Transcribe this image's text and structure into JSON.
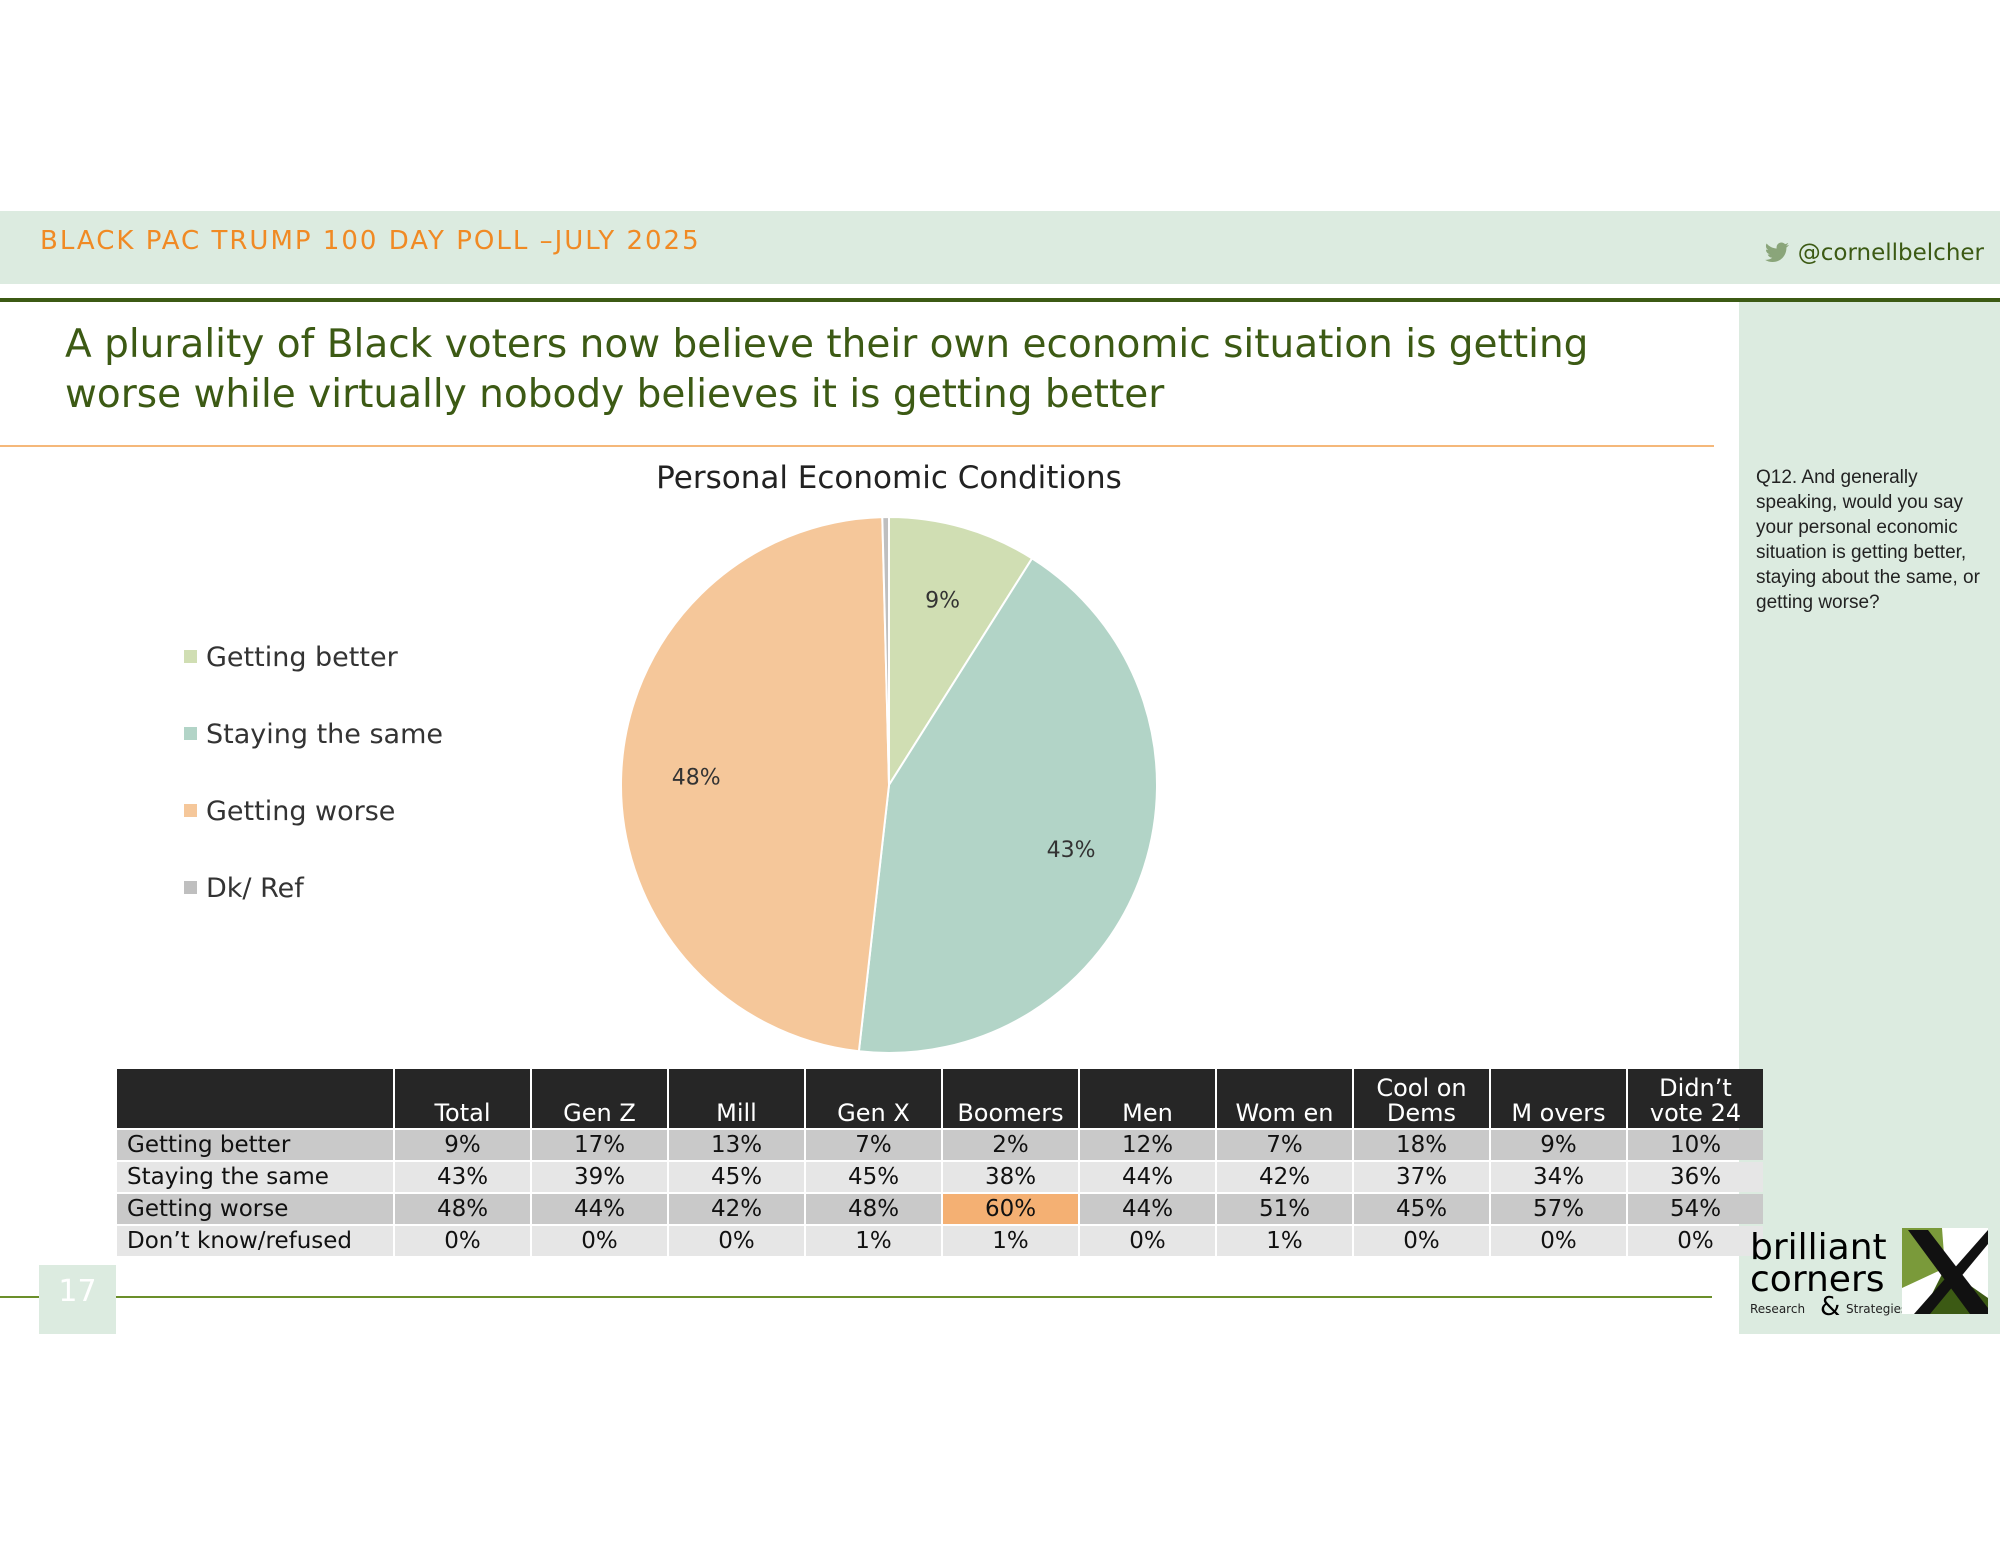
{
  "header": {
    "title": "BLACK PAC TRUMP 100 DAY POLL –JULY 2025",
    "twitter": "@cornellbelcher"
  },
  "headline": "A plurality of Black voters now believe their own economic situation is getting worse while virtually nobody believes it is getting better",
  "question": "Q12. And generally speaking, would you say your personal economic situation is getting better, staying about the same, or getting worse?",
  "page_number": "17",
  "logo": {
    "line1": "brilliant",
    "line2": "corners",
    "amp": "&",
    "line3": "Research",
    "line4": "Strategies"
  },
  "colors": {
    "accent_orange": "#f08a24",
    "brand_green": "#3c5a14",
    "panel_green": "#dcebe0",
    "highlight": "#f4b073"
  },
  "chart_data": [
    {
      "type": "pie",
      "title": "Personal Economic Conditions",
      "labels": [
        "Getting better",
        "Staying the same",
        "Getting worse",
        "Dk/ Ref"
      ],
      "values": [
        9,
        43,
        48,
        0.4
      ],
      "data_labels": [
        "9%",
        "43%",
        "48%",
        ""
      ],
      "colors": [
        "#d0deb3",
        "#b2d4c7",
        "#f5c79a",
        "#bfbfbf"
      ],
      "legend_position": "left"
    },
    {
      "type": "table",
      "columns": [
        "Total",
        "Gen Z",
        "Mill",
        "Gen X",
        "Boomers",
        "Men",
        "Wom en",
        "Cool on Dems",
        "M overs",
        "Didn’t vote 24"
      ],
      "rows": [
        {
          "label": "Getting better",
          "values": [
            "9%",
            "17%",
            "13%",
            "7%",
            "2%",
            "12%",
            "7%",
            "18%",
            "9%",
            "10%"
          ]
        },
        {
          "label": "Staying the same",
          "values": [
            "43%",
            "39%",
            "45%",
            "45%",
            "38%",
            "44%",
            "42%",
            "37%",
            "34%",
            "36%"
          ]
        },
        {
          "label": "Getting worse",
          "values": [
            "48%",
            "44%",
            "42%",
            "48%",
            "60%",
            "44%",
            "51%",
            "45%",
            "57%",
            "54%"
          ]
        },
        {
          "label": "Don’t know/refused",
          "values": [
            "0%",
            "0%",
            "0%",
            "1%",
            "1%",
            "0%",
            "1%",
            "0%",
            "0%",
            "0%"
          ]
        }
      ],
      "highlighted_cell": {
        "row": 2,
        "column": 4
      }
    }
  ]
}
